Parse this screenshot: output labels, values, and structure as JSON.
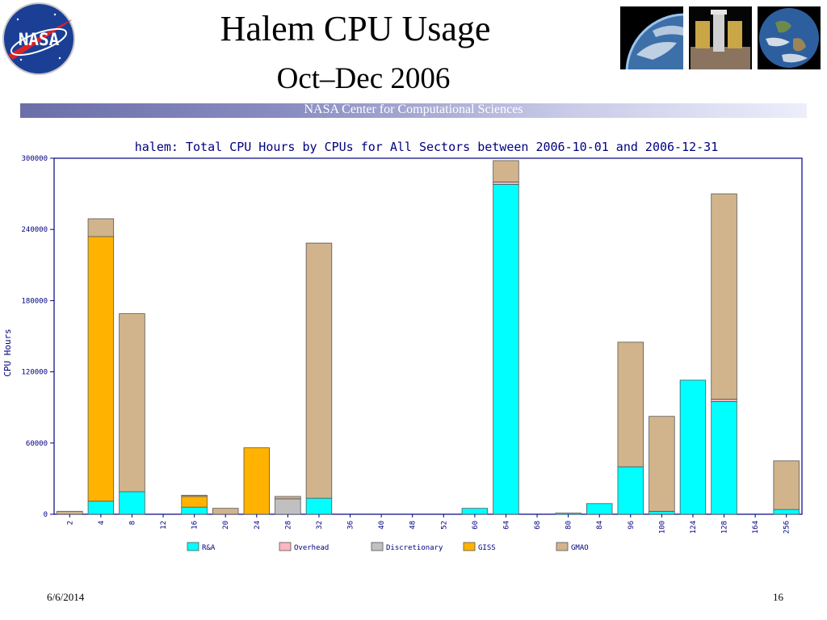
{
  "slide": {
    "title": "Halem CPU Usage",
    "subtitle": "Oct–Dec 2006",
    "band_text": "NASA Center for Computational Sciences",
    "footer_date": "6/6/2014",
    "page_number": "16",
    "logo_text": "NASA",
    "photo_icons": [
      "earth-limb-photo",
      "space-telescope-photo",
      "earth-globe-photo"
    ]
  },
  "chart_data": {
    "type": "bar",
    "stacked": true,
    "title": "halem: Total CPU Hours by CPUs for All Sectors between 2006-10-01 and 2006-12-31",
    "ylabel": "CPU Hours",
    "xlabel": "",
    "ylim": [
      0,
      300000
    ],
    "yticks": [
      0,
      60000,
      120000,
      180000,
      240000,
      300000
    ],
    "ytick_labels": [
      "0",
      "60000",
      "120000",
      "180000",
      "240000",
      "300000"
    ],
    "grid": false,
    "legend_position": "bottom",
    "categories": [
      "2",
      "4",
      "8",
      "12",
      "16",
      "20",
      "24",
      "28",
      "32",
      "36",
      "40",
      "48",
      "52",
      "60",
      "64",
      "68",
      "80",
      "84",
      "96",
      "100",
      "124",
      "128",
      "164",
      "256"
    ],
    "series": [
      {
        "name": "R&A",
        "color": "#00ffff",
        "values": [
          0,
          11000,
          19000,
          0,
          6000,
          0,
          0,
          0,
          13500,
          0,
          0,
          0,
          0,
          5000,
          278000,
          0,
          1000,
          9000,
          40000,
          2500,
          113000,
          95000,
          0,
          4000
        ]
      },
      {
        "name": "Overhead",
        "color": "#ffb6c1",
        "values": [
          0,
          0,
          0,
          0,
          0,
          0,
          0,
          0,
          0,
          0,
          0,
          0,
          0,
          0,
          2000,
          0,
          0,
          0,
          0,
          0,
          0,
          2000,
          0,
          0
        ]
      },
      {
        "name": "Discretionary",
        "color": "#c0c0c0",
        "values": [
          0,
          0,
          0,
          0,
          0,
          0,
          0,
          13000,
          0,
          0,
          0,
          0,
          0,
          0,
          0,
          0,
          0,
          0,
          0,
          0,
          0,
          0,
          0,
          0
        ]
      },
      {
        "name": "GISS",
        "color": "#ffb300",
        "values": [
          0,
          223000,
          0,
          0,
          9000,
          0,
          56000,
          0,
          0,
          0,
          0,
          0,
          0,
          0,
          0,
          0,
          0,
          0,
          0,
          0,
          0,
          0,
          0,
          0
        ]
      },
      {
        "name": "GMAO",
        "color": "#d2b48c",
        "values": [
          2500,
          15000,
          150000,
          0,
          1000,
          5000,
          0,
          2000,
          215000,
          0,
          0,
          0,
          0,
          0,
          18000,
          0,
          0,
          0,
          105000,
          80000,
          0,
          173000,
          0,
          41000
        ]
      }
    ]
  }
}
